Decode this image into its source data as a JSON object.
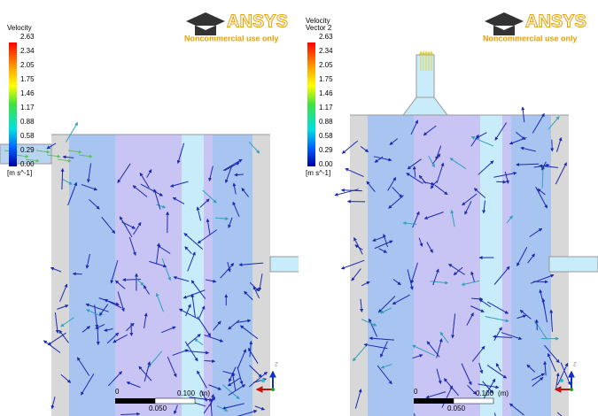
{
  "logo": {
    "brand": "ANSYS",
    "note": "Noncommercial use only"
  },
  "panels": [
    {
      "legend": {
        "title": [
          "Velocity"
        ],
        "ticks": [
          "2.63",
          "2.34",
          "2.05",
          "1.75",
          "1.46",
          "1.17",
          "0.88",
          "0.58",
          "0.29",
          "0.00"
        ],
        "unit": "[m s^-1]"
      }
    },
    {
      "legend": {
        "title": [
          "Velocity",
          "Vector 2"
        ],
        "ticks": [
          "2.63",
          "2.34",
          "2.05",
          "1.75",
          "1.46",
          "1.17",
          "0.88",
          "0.58",
          "0.29",
          "0.00"
        ],
        "unit": "[m s^-1]"
      }
    }
  ],
  "scale": {
    "start": "0",
    "end": "0.100",
    "unit": "(m)",
    "mid": "0.050"
  },
  "axis": {
    "label": "Z"
  }
}
